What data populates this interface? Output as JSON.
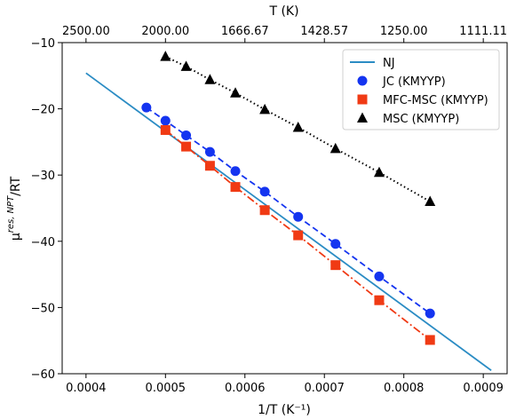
{
  "chart_data": {
    "type": "scatter",
    "xlabel": "1/T (K⁻¹)",
    "ylabel_main": "μ",
    "ylabel_sup": "res, NPT",
    "ylabel_tail": "/RT",
    "top_xlabel": "T (K)",
    "xlim": [
      0.00037,
      0.00093
    ],
    "ylim": [
      -60,
      -10
    ],
    "x_ticks": [
      0.0004,
      0.0005,
      0.0006,
      0.0007,
      0.0008,
      0.0009
    ],
    "x_tick_labels": [
      "0.0004",
      "0.0005",
      "0.0006",
      "0.0007",
      "0.0008",
      "0.0009"
    ],
    "y_ticks": [
      -60,
      -50,
      -40,
      -30,
      -20,
      -10
    ],
    "y_tick_labels": [
      "−60",
      "−50",
      "−40",
      "−30",
      "−20",
      "−10"
    ],
    "top_tick_labels": [
      "2500.00",
      "2000.00",
      "1666.67",
      "1428.57",
      "1250.00",
      "1111.11"
    ],
    "legend_position": "top-right",
    "series": [
      {
        "name": "NJ",
        "style": "line",
        "color": "#2b8cc4",
        "x": [
          0.0004,
          0.00091
        ],
        "y": [
          -14.6,
          -59.5
        ]
      },
      {
        "name": "JC (KMYYP)",
        "style": "circle-dashed",
        "color": "#1434f0",
        "x": [
          0.000476,
          0.0005,
          0.000526,
          0.000556,
          0.000588,
          0.000625,
          0.000667,
          0.000714,
          0.000769,
          0.000833
        ],
        "y": [
          -19.8,
          -21.8,
          -24.0,
          -26.5,
          -29.4,
          -32.5,
          -36.3,
          -40.4,
          -45.3,
          -50.9
        ]
      },
      {
        "name": "MFC-MSC (KMYYP)",
        "style": "square-dashdot",
        "color": "#f03a14",
        "x": [
          0.0005,
          0.000526,
          0.000556,
          0.000588,
          0.000625,
          0.000667,
          0.000714,
          0.000769,
          0.000833
        ],
        "y": [
          -23.2,
          -25.7,
          -28.6,
          -31.8,
          -35.3,
          -39.1,
          -43.6,
          -48.9,
          -54.9
        ]
      },
      {
        "name": "MSC (KMYYP)",
        "style": "triangle-dotted",
        "color": "#000000",
        "x": [
          0.0005,
          0.000526,
          0.000556,
          0.000588,
          0.000625,
          0.000667,
          0.000714,
          0.000769,
          0.000833
        ],
        "y": [
          -12.1,
          -13.6,
          -15.6,
          -17.6,
          -20.1,
          -22.8,
          -26.0,
          -29.6,
          -34.0
        ]
      }
    ]
  }
}
